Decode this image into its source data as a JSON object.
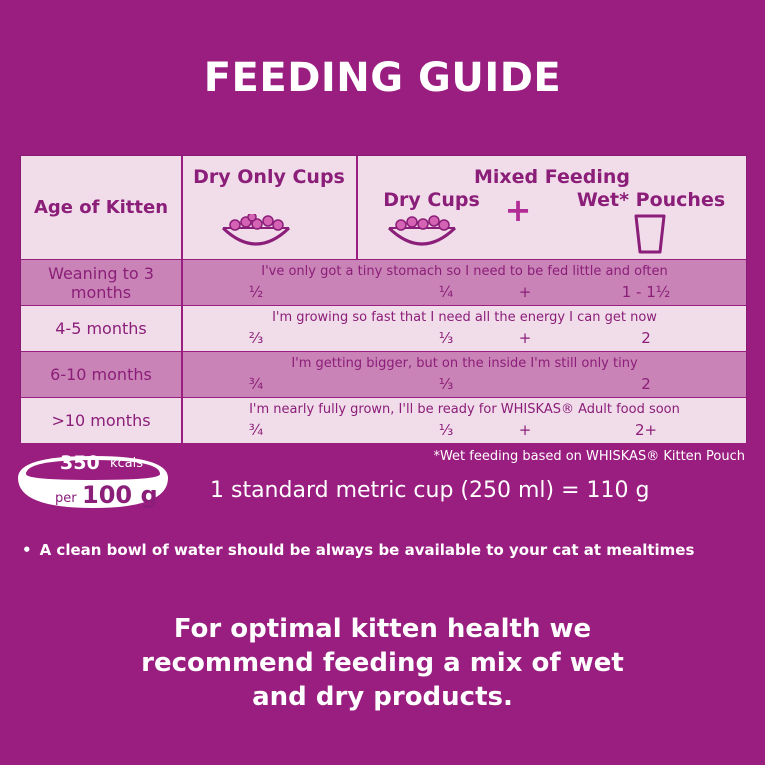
{
  "title": "FEEDING GUIDE",
  "table": {
    "headers": {
      "age": "Age of Kitten",
      "dry_only": "Dry Only Cups",
      "mixed": "Mixed Feeding",
      "mixed_dry": "Dry Cups",
      "plus": "+",
      "mixed_wet": "Wet* Pouches"
    },
    "rows": [
      {
        "age": "Weaning to 3 months",
        "note": "I've only got a tiny stomach so I need to be fed little and often",
        "dry_only": "½",
        "mixed_dry": "¼",
        "plus": "+",
        "wet": "1 - 1½"
      },
      {
        "age": "4-5 months",
        "note": "I'm growing so fast that I need all the energy I can get now",
        "dry_only": "⅔",
        "mixed_dry": "⅓",
        "plus": "+",
        "wet": "2"
      },
      {
        "age": "6-10 months",
        "note": "I'm getting bigger, but on the inside I'm still only tiny",
        "dry_only": "¾",
        "mixed_dry": "⅓",
        "plus": "",
        "wet": "2"
      },
      {
        "age": ">10 months",
        "note": "I'm nearly fully grown, I'll be ready for WHISKAS® Adult food soon",
        "dry_only": "¾",
        "mixed_dry": "⅓",
        "plus": "+",
        "wet": "2+"
      }
    ]
  },
  "footnote": "*Wet feeding based on WHISKAS® Kitten Pouch",
  "badge": {
    "kcal_value": "350",
    "kcal_unit": "kcals",
    "per": "per",
    "amount": "100 g"
  },
  "cup_note": "1 standard metric cup (250 ml) = 110 g",
  "bullet": "A clean bowl of water should be always be available to your cat at mealtimes",
  "recommendation": [
    "For optimal kitten health we",
    "recommend feeding a mix of wet",
    "and dry products."
  ],
  "colors": {
    "background": "#9a1d80",
    "table_light": "#f1dcea",
    "table_dark": "#c983b7",
    "text_purple": "#8b1e78"
  },
  "icons": {
    "dry_bowl": "bowl-kibble-icon",
    "wet_pouch": "pouch-cup-icon"
  }
}
